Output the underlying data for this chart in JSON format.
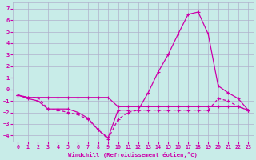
{
  "xlabel": "Windchill (Refroidissement éolien,°C)",
  "background_color": "#c8ece8",
  "grid_color": "#b0b0cc",
  "line_color": "#cc00aa",
  "x": [
    0,
    1,
    2,
    3,
    4,
    5,
    6,
    7,
    8,
    9,
    10,
    11,
    12,
    13,
    14,
    15,
    16,
    17,
    18,
    19,
    20,
    21,
    22,
    23
  ],
  "line1": [
    -0.5,
    -0.7,
    -0.7,
    -0.7,
    -0.7,
    -0.7,
    -0.7,
    -0.7,
    -0.7,
    -0.7,
    -1.5,
    -1.5,
    -1.5,
    -1.5,
    -1.5,
    -1.5,
    -1.5,
    -1.5,
    -1.5,
    -1.5,
    -1.5,
    -1.5,
    -1.5,
    -1.8
  ],
  "line2": [
    -0.5,
    -0.8,
    -1.0,
    -1.7,
    -1.7,
    -1.7,
    -2.0,
    -2.5,
    -3.5,
    -4.2,
    -1.8,
    -1.8,
    -1.8,
    -0.3,
    1.5,
    3.0,
    4.8,
    6.5,
    6.7,
    4.8,
    0.3,
    -0.3,
    -0.8,
    -1.8
  ],
  "line3": [
    -0.5,
    -0.7,
    -0.7,
    -1.7,
    -1.8,
    -2.0,
    -2.2,
    -2.6,
    -3.5,
    -4.3,
    -2.6,
    -2.0,
    -1.8,
    -1.8,
    -1.8,
    -1.8,
    -1.8,
    -1.8,
    -1.8,
    -1.8,
    -0.8,
    -1.0,
    -1.5,
    -1.8
  ],
  "ylim": [
    -4.5,
    7.5
  ],
  "xlim": [
    -0.5,
    23.5
  ],
  "yticks": [
    -4,
    -3,
    -2,
    -1,
    0,
    1,
    2,
    3,
    4,
    5,
    6,
    7
  ],
  "xticks": [
    0,
    1,
    2,
    3,
    4,
    5,
    6,
    7,
    8,
    9,
    10,
    11,
    12,
    13,
    14,
    15,
    16,
    17,
    18,
    19,
    20,
    21,
    22,
    23
  ]
}
